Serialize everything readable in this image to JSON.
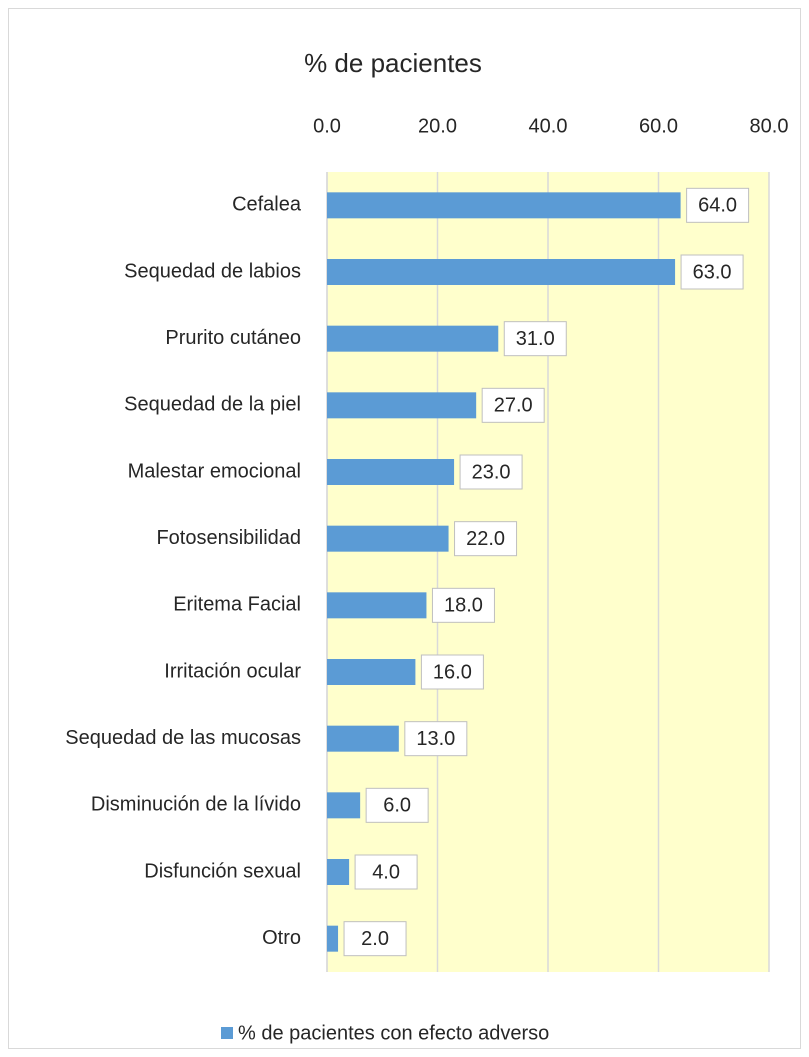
{
  "chart_data": {
    "type": "barh",
    "title": "% de pacientes",
    "categories": [
      "Cefalea",
      "Sequedad de labios",
      "Prurito cutáneo",
      "Sequedad de la piel",
      "Malestar emocional",
      "Fotosensibilidad",
      "Eritema Facial",
      "Irritación ocular",
      "Sequedad de las mucosas",
      "Disminución de la lívido",
      "Disfunción sexual",
      "Otro"
    ],
    "series": [
      {
        "name": "% de pacientes con efecto adverso",
        "color": "#5b9bd5",
        "values": [
          64,
          63,
          31,
          27,
          23,
          22,
          18,
          16,
          13,
          6,
          4,
          2
        ],
        "value_labels": [
          "64.0",
          "63.0",
          "31.0",
          "27.0",
          "23.0",
          "22.0",
          "18.0",
          "16.0",
          "13.0",
          "6.0",
          "4.0",
          "2.0"
        ]
      }
    ],
    "xlim": [
      0,
      80
    ],
    "xticks": [
      {
        "value": 0,
        "label": "0.0"
      },
      {
        "value": 20,
        "label": "20.0"
      },
      {
        "value": 40,
        "label": "40.0"
      },
      {
        "value": 60,
        "label": "60.0"
      },
      {
        "value": 80,
        "label": "80.0"
      }
    ],
    "grid": true,
    "plot_background": "#ffffcc",
    "legend": "bottom"
  }
}
